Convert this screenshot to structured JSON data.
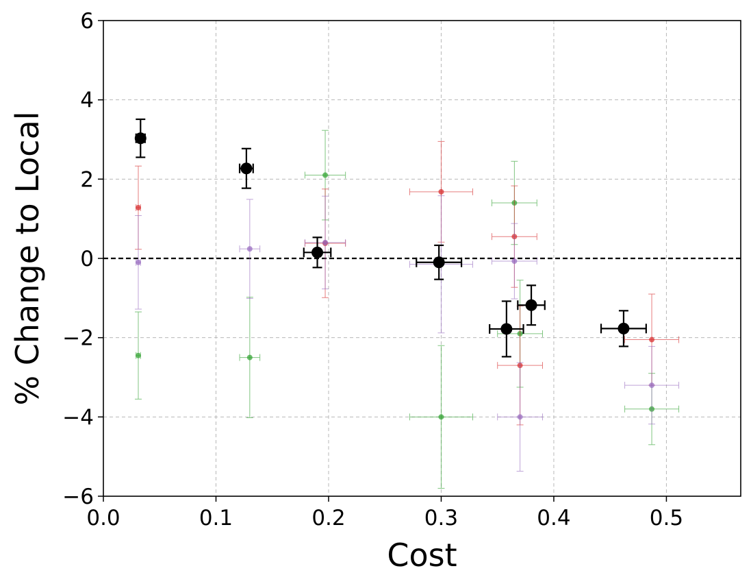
{
  "chart_data": {
    "type": "scatter",
    "title": "",
    "xlabel": "Cost",
    "ylabel": "% Change to Local",
    "xlim": [
      0.0,
      0.566
    ],
    "ylim": [
      -6,
      6
    ],
    "xticks": [
      0.0,
      0.1,
      0.2,
      0.3,
      0.4,
      0.5
    ],
    "xtick_labels": [
      "0.0",
      "0.1",
      "0.2",
      "0.3",
      "0.4",
      "0.5"
    ],
    "yticks": [
      -6,
      -4,
      -2,
      0,
      2,
      4,
      6
    ],
    "ytick_labels": [
      "−6",
      "−4",
      "−2",
      "0",
      "2",
      "4",
      "6"
    ],
    "grid": true,
    "reference_line": {
      "y": 0,
      "style": "dashed",
      "color": "#000000"
    },
    "series": [
      {
        "name": "green",
        "color": "#2ca02c",
        "points": [
          {
            "x": 0.031,
            "y": -2.45,
            "xerr": 0.002,
            "yerr": 1.1
          },
          {
            "x": 0.13,
            "y": -2.5,
            "xerr": 0.009,
            "yerr": 1.52
          },
          {
            "x": 0.197,
            "y": 2.1,
            "xerr": 0.018,
            "yerr": 1.13
          },
          {
            "x": 0.3,
            "y": -4.0,
            "xerr": 0.028,
            "yerr": 1.8
          },
          {
            "x": 0.365,
            "y": 1.4,
            "xerr": 0.02,
            "yerr": 1.05
          },
          {
            "x": 0.37,
            "y": -1.9,
            "xerr": 0.02,
            "yerr": 1.35
          },
          {
            "x": 0.487,
            "y": -3.8,
            "xerr": 0.024,
            "yerr": 0.9
          }
        ]
      },
      {
        "name": "red",
        "color": "#d62728",
        "points": [
          {
            "x": 0.031,
            "y": 1.28,
            "xerr": 0.002,
            "yerr": 1.05
          },
          {
            "x": 0.197,
            "y": 0.38,
            "xerr": 0.018,
            "yerr": 1.37
          },
          {
            "x": 0.3,
            "y": 1.68,
            "xerr": 0.028,
            "yerr": 1.27
          },
          {
            "x": 0.365,
            "y": 0.55,
            "xerr": 0.02,
            "yerr": 1.28
          },
          {
            "x": 0.37,
            "y": -2.7,
            "xerr": 0.02,
            "yerr": 1.5
          },
          {
            "x": 0.487,
            "y": -2.05,
            "xerr": 0.024,
            "yerr": 1.15
          }
        ]
      },
      {
        "name": "purple",
        "color": "#9467bd",
        "points": [
          {
            "x": 0.031,
            "y": -0.1,
            "xerr": 0.002,
            "yerr": 1.18
          },
          {
            "x": 0.13,
            "y": 0.24,
            "xerr": 0.009,
            "yerr": 1.25
          },
          {
            "x": 0.197,
            "y": 0.4,
            "xerr": 0.018,
            "yerr": 1.17
          },
          {
            "x": 0.3,
            "y": -0.15,
            "xerr": 0.028,
            "yerr": 1.73
          },
          {
            "x": 0.365,
            "y": -0.07,
            "xerr": 0.02,
            "yerr": 0.95
          },
          {
            "x": 0.37,
            "y": -4.0,
            "xerr": 0.02,
            "yerr": 1.37
          },
          {
            "x": 0.487,
            "y": -3.2,
            "xerr": 0.024,
            "yerr": 0.98
          }
        ]
      },
      {
        "name": "black",
        "color": "#000000",
        "points": [
          {
            "x": 0.033,
            "y": 3.03,
            "xerr": 0.004,
            "yerr": 0.48
          },
          {
            "x": 0.127,
            "y": 2.27,
            "xerr": 0.006,
            "yerr": 0.5
          },
          {
            "x": 0.19,
            "y": 0.15,
            "xerr": 0.012,
            "yerr": 0.38
          },
          {
            "x": 0.298,
            "y": -0.1,
            "xerr": 0.02,
            "yerr": 0.43
          },
          {
            "x": 0.358,
            "y": -1.78,
            "xerr": 0.015,
            "yerr": 0.7
          },
          {
            "x": 0.38,
            "y": -1.18,
            "xerr": 0.012,
            "yerr": 0.5
          },
          {
            "x": 0.462,
            "y": -1.77,
            "xerr": 0.02,
            "yerr": 0.45
          }
        ]
      }
    ]
  }
}
